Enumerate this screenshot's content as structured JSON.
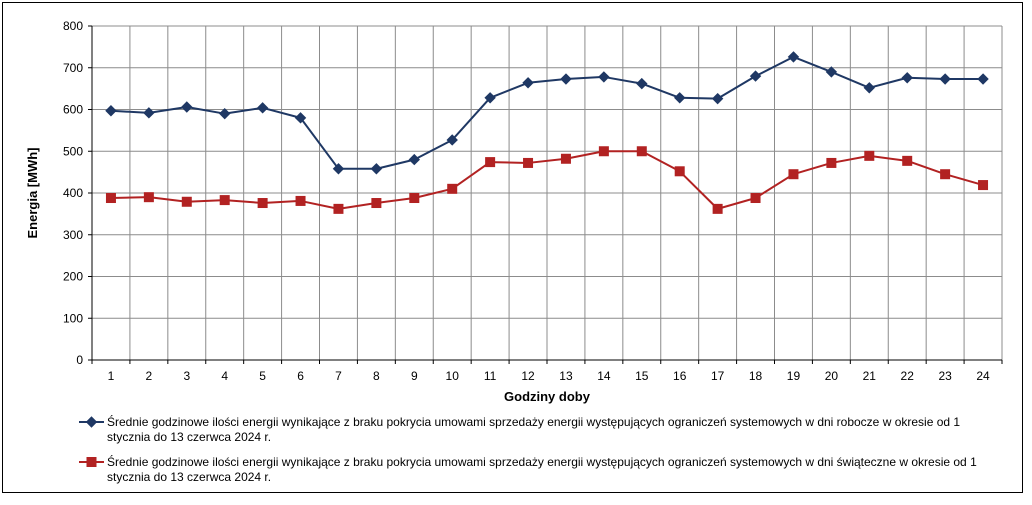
{
  "chart_data": {
    "type": "line",
    "xlabel": "Godziny doby",
    "ylabel": "Energia [MWh]",
    "ylim": [
      0,
      800
    ],
    "yticks": [
      0,
      100,
      200,
      300,
      400,
      500,
      600,
      700,
      800
    ],
    "grid": true,
    "legend_position": "bottom",
    "categories": [
      "1",
      "2",
      "3",
      "4",
      "5",
      "6",
      "7",
      "8",
      "9",
      "10",
      "11",
      "12",
      "13",
      "14",
      "15",
      "16",
      "17",
      "18",
      "19",
      "20",
      "21",
      "22",
      "23",
      "24"
    ],
    "series": [
      {
        "name": "Średnie godzinowe ilości energii wynikające z braku pokrycia umowami sprzedaży energii występujących ograniczeń systemowych w dni robocze w okresie od 1 stycznia do 13 czerwca 2024 r.",
        "legend_lines": [
          "Średnie godzinowe ilości energii wynikające z braku pokrycia umowami sprzedaży energii występujących ograniczeń systemowych w dni robocze w okresie od 1",
          "stycznia do 13 czerwca 2024 r."
        ],
        "color": "#1f3864",
        "marker": "diamond",
        "values": [
          597,
          592,
          606,
          590,
          604,
          580,
          458,
          458,
          480,
          527,
          628,
          664,
          673,
          678,
          662,
          628,
          626,
          680,
          726,
          690,
          652,
          676,
          673,
          673
        ]
      },
      {
        "name": "Średnie godzinowe ilości energii wynikające z braku pokrycia umowami sprzedaży energii występujących ograniczeń systemowych w dni świąteczne w okresie od 1 stycznia do 13 czerwca 2024 r.",
        "legend_lines": [
          "Średnie godzinowe ilości energii wynikające z braku pokrycia umowami sprzedaży energii występujących ograniczeń systemowych w dni świąteczne w okresie od 1",
          "stycznia do 13 czerwca 2024 r."
        ],
        "color": "#b22222",
        "marker": "square",
        "values": [
          388,
          390,
          379,
          383,
          376,
          381,
          362,
          376,
          388,
          410,
          474,
          472,
          482,
          500,
          500,
          452,
          362,
          388,
          445,
          472,
          489,
          477,
          445,
          419
        ]
      }
    ]
  }
}
